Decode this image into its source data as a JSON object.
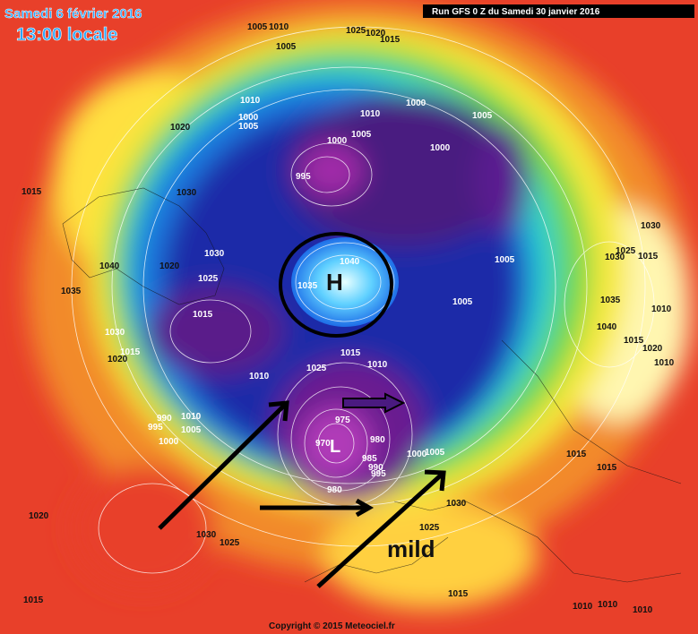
{
  "header": {
    "date": "Samedi 6 février 2016",
    "time": "13:00 locale",
    "run": "Run GFS 0 Z du Samedi 30 janvier 2016"
  },
  "annotations": {
    "high": "H",
    "low": "L",
    "mild": "mild"
  },
  "footer": "Copyright © 2015 Meteociel.fr",
  "pressure_labels": [
    "1005",
    "1010",
    "1005",
    "1025",
    "1020",
    "1015",
    "1010",
    "1000",
    "1005",
    "1010",
    "1000",
    "1005",
    "1020",
    "1005",
    "1000",
    "1000",
    "995",
    "1015",
    "1030",
    "1040",
    "1020",
    "1030",
    "1025",
    "1035",
    "1015",
    "1030",
    "1020",
    "1015",
    "1040",
    "1035",
    "1005",
    "1005",
    "1030",
    "1025",
    "1015",
    "1030",
    "1035",
    "1010",
    "1040",
    "1015",
    "1020",
    "1010",
    "1015",
    "1010",
    "1025",
    "1010",
    "975",
    "980",
    "970",
    "985",
    "990",
    "995",
    "1000",
    "1005",
    "980",
    "1030",
    "1025",
    "1015",
    "1015",
    "990",
    "995",
    "1010",
    "1005",
    "1000",
    "1020",
    "1030",
    "1025",
    "1015",
    "1010",
    "1010",
    "1010",
    "1015"
  ]
}
